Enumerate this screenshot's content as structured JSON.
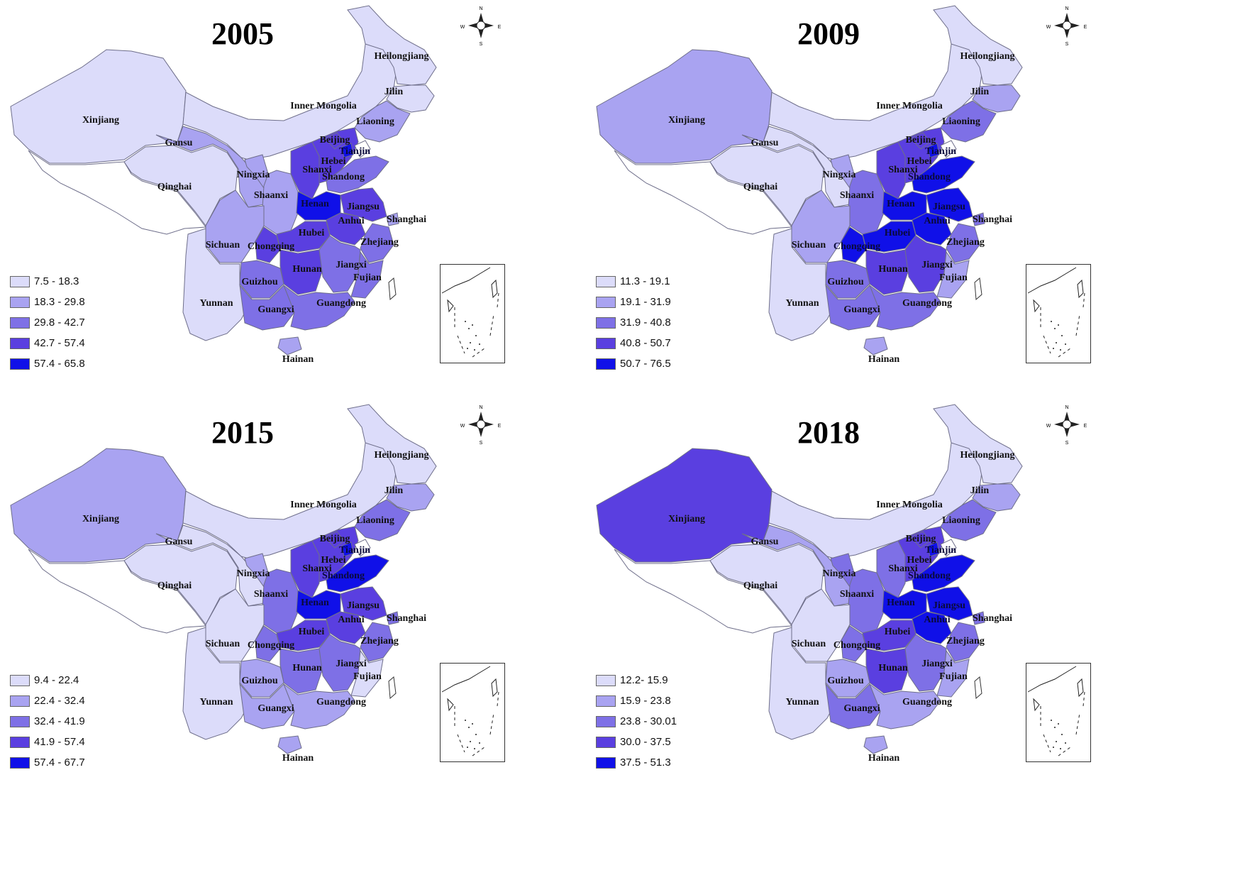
{
  "colors": [
    "#dcdcfa",
    "#a9a3f1",
    "#7e70e6",
    "#5a3fe0",
    "#1010e8"
  ],
  "panels": [
    {
      "year": "2005",
      "legend": [
        "7.5 - 18.3",
        "18.3 - 29.8",
        "29.8 - 42.7",
        "42.7 - 57.4",
        "57.4 - 65.8"
      ],
      "classes": {
        "Xinjiang": 0,
        "Gansu": 1,
        "Qinghai": 0,
        "Ningxia": 1,
        "Inner Mongolia": 0,
        "Heilongjiang": 0,
        "Jilin": 0,
        "Liaoning": 1,
        "Beijing": 3,
        "Tianjin": 4,
        "Hebei": 3,
        "Shanxi": 3,
        "Shandong": 2,
        "Shaanxi": 1,
        "Henan": 4,
        "Jiangsu": 3,
        "Anhui": 3,
        "Shanghai": 1,
        "Hubei": 3,
        "Sichuan": 1,
        "Chongqing": 3,
        "Zhejiang": 2,
        "Hunan": 3,
        "Jiangxi": 2,
        "Guizhou": 2,
        "Fujian": 2,
        "Yunnan": 0,
        "Guangxi": 2,
        "Guangdong": 2,
        "Hainan": 1,
        "Tibet": -1
      }
    },
    {
      "year": "2009",
      "legend": [
        "11.3 - 19.1",
        "19.1 - 31.9",
        "31.9 - 40.8",
        "40.8 - 50.7",
        "50.7 - 76.5"
      ],
      "classes": {
        "Xinjiang": 1,
        "Gansu": 0,
        "Qinghai": 0,
        "Ningxia": 1,
        "Inner Mongolia": 0,
        "Heilongjiang": 0,
        "Jilin": 1,
        "Liaoning": 2,
        "Beijing": 3,
        "Tianjin": 4,
        "Hebei": 3,
        "Shanxi": 3,
        "Shandong": 4,
        "Shaanxi": 2,
        "Henan": 4,
        "Jiangsu": 4,
        "Anhui": 4,
        "Shanghai": 2,
        "Hubei": 4,
        "Sichuan": 1,
        "Chongqing": 4,
        "Zhejiang": 2,
        "Hunan": 3,
        "Jiangxi": 3,
        "Guizhou": 2,
        "Fujian": 1,
        "Yunnan": 0,
        "Guangxi": 2,
        "Guangdong": 2,
        "Hainan": 1,
        "Tibet": -1
      }
    },
    {
      "year": "2015",
      "legend": [
        "9.4 - 22.4",
        "22.4 - 32.4",
        "32.4 - 41.9",
        "41.9 - 57.4",
        "57.4 - 67.7"
      ],
      "classes": {
        "Xinjiang": 1,
        "Gansu": 0,
        "Qinghai": 0,
        "Ningxia": 1,
        "Inner Mongolia": 0,
        "Heilongjiang": 0,
        "Jilin": 1,
        "Liaoning": 2,
        "Beijing": 3,
        "Tianjin": 4,
        "Hebei": 3,
        "Shanxi": 3,
        "Shandong": 4,
        "Shaanxi": 2,
        "Henan": 4,
        "Jiangsu": 3,
        "Anhui": 3,
        "Shanghai": 2,
        "Hubei": 3,
        "Sichuan": 0,
        "Chongqing": 2,
        "Zhejiang": 2,
        "Hunan": 2,
        "Jiangxi": 2,
        "Guizhou": 1,
        "Fujian": 0,
        "Yunnan": 0,
        "Guangxi": 1,
        "Guangdong": 1,
        "Hainan": 1,
        "Tibet": -1
      }
    },
    {
      "year": "2018",
      "legend": [
        "12.2- 15.9",
        "15.9 - 23.8",
        "23.8 - 30.01",
        "30.0 - 37.5",
        "37.5 - 51.3"
      ],
      "classes": {
        "Xinjiang": 3,
        "Gansu": 1,
        "Qinghai": 0,
        "Ningxia": 2,
        "Inner Mongolia": 0,
        "Heilongjiang": 0,
        "Jilin": 1,
        "Liaoning": 2,
        "Beijing": 3,
        "Tianjin": 4,
        "Hebei": 3,
        "Shanxi": 2,
        "Shandong": 4,
        "Shaanxi": 2,
        "Henan": 4,
        "Jiangsu": 4,
        "Anhui": 4,
        "Shanghai": 2,
        "Hubei": 3,
        "Sichuan": 0,
        "Chongqing": 2,
        "Zhejiang": 2,
        "Hunan": 3,
        "Jiangxi": 2,
        "Guizhou": 1,
        "Fujian": 1,
        "Yunnan": 0,
        "Guangxi": 2,
        "Guangdong": 1,
        "Hainan": 1,
        "Tibet": -1
      }
    }
  ],
  "compass": {
    "n": "N",
    "s": "S",
    "e": "E",
    "w": "W"
  }
}
